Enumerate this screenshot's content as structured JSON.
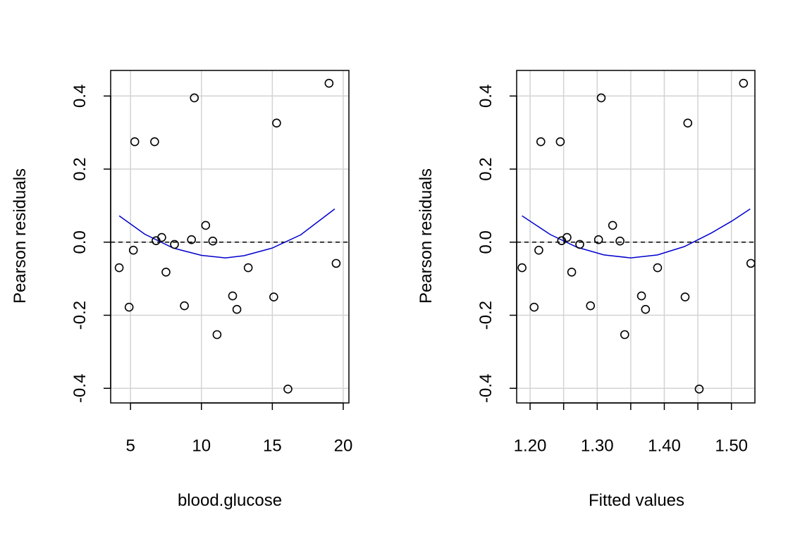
{
  "chart_data": [
    {
      "type": "scatter",
      "xlabel": "blood.glucose",
      "ylabel": "Pearson residuals",
      "xlim": [
        3.6,
        20.4
      ],
      "ylim": [
        -0.44,
        0.47
      ],
      "xticks": [
        5,
        10,
        15,
        20
      ],
      "xtick_labels": [
        "5",
        "10",
        "15",
        "20"
      ],
      "yticks": [
        -0.4,
        -0.2,
        0.0,
        0.2,
        0.4
      ],
      "ytick_labels": [
        "-0.4",
        "-0.2",
        "0.0",
        "0.2",
        "0.4"
      ],
      "grid": true,
      "reference_line": {
        "y": 0,
        "style": "dashed",
        "color": "#000000"
      },
      "smoother": {
        "color": "#0000cd",
        "x": [
          4.2,
          6,
          8,
          10,
          11.7,
          13,
          15,
          17,
          19.4
        ],
        "y": [
          0.072,
          0.022,
          -0.016,
          -0.036,
          -0.043,
          -0.037,
          -0.016,
          0.02,
          0.091
        ]
      },
      "series": [
        {
          "x": [
            4.2,
            4.9,
            5.2,
            5.3,
            6.7,
            6.8,
            7.2,
            7.5,
            8.1,
            8.8,
            9.3,
            9.5,
            10.3,
            10.8,
            11.1,
            12.2,
            12.5,
            13.3,
            15.1,
            15.3,
            16.1,
            19.0,
            19.5
          ],
          "y": [
            -0.07,
            -0.178,
            -0.022,
            0.275,
            0.275,
            0.004,
            0.013,
            -0.082,
            -0.006,
            -0.174,
            0.007,
            0.395,
            0.046,
            0.003,
            -0.253,
            -0.147,
            -0.184,
            -0.07,
            -0.15,
            0.326,
            -0.402,
            0.435,
            -0.058
          ]
        }
      ]
    },
    {
      "type": "scatter",
      "xlabel": "Fitted values",
      "ylabel": "Pearson residuals",
      "xlim": [
        1.18,
        1.535
      ],
      "ylim": [
        -0.44,
        0.47
      ],
      "xticks": [
        1.2,
        1.25,
        1.3,
        1.35,
        1.4,
        1.45,
        1.5
      ],
      "xtick_labels": [
        "1.20",
        "",
        "1.30",
        "",
        "1.40",
        "",
        "1.50"
      ],
      "yticks": [
        -0.4,
        -0.2,
        0.0,
        0.2,
        0.4
      ],
      "ytick_labels": [
        "-0.4",
        "-0.2",
        "0.0",
        "0.2",
        "0.4"
      ],
      "grid": true,
      "reference_line": {
        "y": 0,
        "style": "dashed",
        "color": "#000000"
      },
      "smoother": {
        "color": "#0000cd",
        "x": [
          1.188,
          1.23,
          1.27,
          1.31,
          1.35,
          1.39,
          1.43,
          1.47,
          1.5,
          1.528
        ],
        "y": [
          0.072,
          0.021,
          -0.014,
          -0.035,
          -0.043,
          -0.035,
          -0.012,
          0.025,
          0.057,
          0.091
        ]
      },
      "series": [
        {
          "x": [
            1.188,
            1.206,
            1.213,
            1.216,
            1.245,
            1.247,
            1.255,
            1.262,
            1.274,
            1.29,
            1.302,
            1.306,
            1.323,
            1.334,
            1.341,
            1.366,
            1.372,
            1.39,
            1.431,
            1.435,
            1.452,
            1.518,
            1.529
          ],
          "y": [
            -0.07,
            -0.178,
            -0.022,
            0.275,
            0.275,
            0.004,
            0.013,
            -0.082,
            -0.006,
            -0.174,
            0.007,
            0.395,
            0.046,
            0.003,
            -0.253,
            -0.147,
            -0.184,
            -0.07,
            -0.15,
            0.326,
            -0.402,
            0.435,
            -0.058
          ]
        }
      ]
    }
  ]
}
